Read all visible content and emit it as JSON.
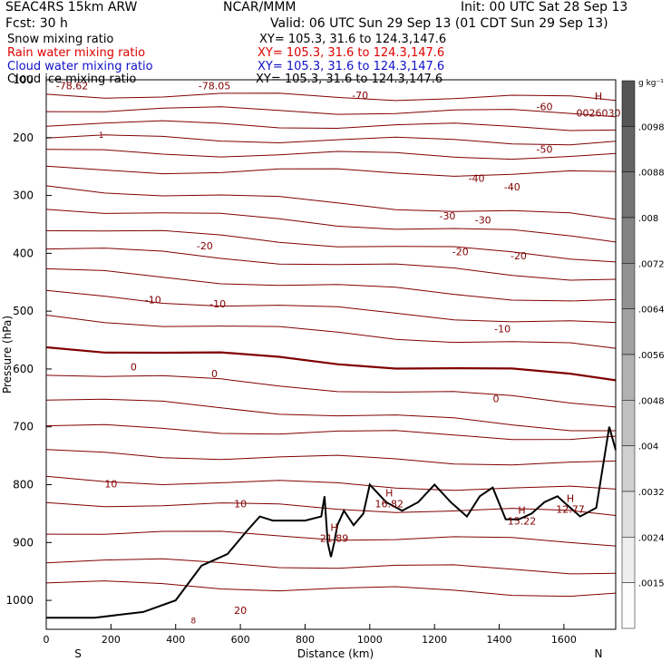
{
  "header": {
    "title_left": "SEAC4RS 15km ARW",
    "title_center": "NCAR/MMM",
    "init": "Init: 00 UTC Sat 28 Sep 13",
    "fcst": "Fcst:   30 h",
    "valid": "Valid: 06 UTC Sun 29 Sep 13 (01 CDT Sun 29 Sep 13)",
    "fields": [
      {
        "name": "Snow mixing ratio",
        "xy": "XY=  105.3,  31.6 to 124.3,147.6",
        "color": "#000000"
      },
      {
        "name": "Rain water mixing ratio",
        "xy": "XY=  105.3,  31.6 to  124.3,147.6",
        "color": "#ff0000"
      },
      {
        "name": "Cloud water mixing ratio",
        "xy": "XY=  105.3,  31.6 to  124.3,147.6",
        "color": "#0000cc"
      },
      {
        "name": "Cloud ice mixing ratio",
        "xy": "XY=  105.3,  31.6 to  124.3,147.6",
        "color": "#000000"
      }
    ]
  },
  "chart_data": {
    "type": "line",
    "xlabel": "Distance (km)",
    "ylabel": "Pressure (hPa)",
    "xlim": [
      0,
      1760
    ],
    "ylim": [
      100,
      1050
    ],
    "x_ticks": [
      0,
      200,
      400,
      600,
      800,
      1000,
      1200,
      1400,
      1600
    ],
    "y_ticks": [
      100,
      200,
      300,
      400,
      500,
      600,
      700,
      800,
      900,
      1000
    ],
    "x_end_labels": {
      "left": "S",
      "right": "N"
    },
    "contour_color": "#800000",
    "terrain_color": "#000000",
    "temperature_contour_labels": [
      {
        "text": "-78.62",
        "x": 80,
        "p": 110
      },
      {
        "text": "-78.05",
        "x": 520,
        "p": 110
      },
      {
        "text": "-70",
        "x": 970,
        "p": 127
      },
      {
        "text": "-60",
        "x": 1540,
        "p": 146
      },
      {
        "text": "-50",
        "x": 1540,
        "p": 220
      },
      {
        "text": "-40",
        "x": 1330,
        "p": 270
      },
      {
        "text": "-40",
        "x": 1440,
        "p": 285
      },
      {
        "text": "-30",
        "x": 1240,
        "p": 335
      },
      {
        "text": "-30",
        "x": 1350,
        "p": 342
      },
      {
        "text": "-20",
        "x": 490,
        "p": 387
      },
      {
        "text": "-20",
        "x": 1280,
        "p": 397
      },
      {
        "text": "-20",
        "x": 1460,
        "p": 404
      },
      {
        "text": "-10",
        "x": 330,
        "p": 480
      },
      {
        "text": "-10",
        "x": 530,
        "p": 487
      },
      {
        "text": "-10",
        "x": 1410,
        "p": 530
      },
      {
        "text": "0",
        "x": 270,
        "p": 596
      },
      {
        "text": "0",
        "x": 520,
        "p": 608
      },
      {
        "text": "0",
        "x": 1390,
        "p": 651
      },
      {
        "text": "10",
        "x": 200,
        "p": 798
      },
      {
        "text": "10",
        "x": 600,
        "p": 833
      },
      {
        "text": "20",
        "x": 600,
        "p": 1017
      },
      {
        "text": "H",
        "x": 1800,
        "p": 128
      },
      {
        "text": "0026030",
        "x": 1830,
        "p": 157
      }
    ],
    "highs": [
      {
        "label": "H",
        "value": "21.89",
        "x": 890,
        "p": 880
      },
      {
        "label": "H",
        "value": "16.82",
        "x": 1060,
        "p": 820
      },
      {
        "label": "H",
        "value": "15.22",
        "x": 1470,
        "p": 850
      },
      {
        "label": "H",
        "value": "12.77",
        "x": 1620,
        "p": 830
      }
    ],
    "small_labels": [
      {
        "text": "8",
        "x": 455,
        "p": 1040
      },
      {
        "text": "1",
        "x": 170,
        "p": 200
      }
    ],
    "terrain": {
      "x": [
        0,
        150,
        300,
        400,
        480,
        560,
        620,
        660,
        700,
        740,
        800,
        850,
        860,
        870,
        880,
        890,
        900,
        920,
        950,
        980,
        1000,
        1050,
        1100,
        1150,
        1200,
        1250,
        1300,
        1340,
        1380,
        1420,
        1460,
        1500,
        1540,
        1580,
        1600,
        1650,
        1700,
        1740,
        1760
      ],
      "p": [
        1030,
        1030,
        1020,
        1000,
        940,
        920,
        880,
        855,
        862,
        862,
        862,
        855,
        820,
        900,
        925,
        900,
        870,
        845,
        870,
        850,
        800,
        830,
        845,
        830,
        800,
        830,
        855,
        820,
        805,
        860,
        860,
        850,
        830,
        820,
        830,
        855,
        840,
        700,
        740
      ]
    },
    "isobar_contours": [
      {
        "name": "top",
        "p": [
          110,
          112,
          113,
          114,
          115,
          116,
          118,
          120,
          122,
          118,
          123,
          140,
          148,
          155,
          157
        ],
        "x": [
          0,
          120,
          240,
          360,
          480,
          600,
          720,
          840,
          960,
          1080,
          1200,
          1320,
          1440,
          1560,
          1760
        ]
      }
    ],
    "colorbar": {
      "label": "g kg⁻¹",
      "ticks": [
        ".0098",
        ".0088",
        ".008",
        ".0072",
        ".0064",
        ".0056",
        ".0048",
        ".004",
        ".0032",
        ".0024",
        ".0015"
      ]
    }
  }
}
